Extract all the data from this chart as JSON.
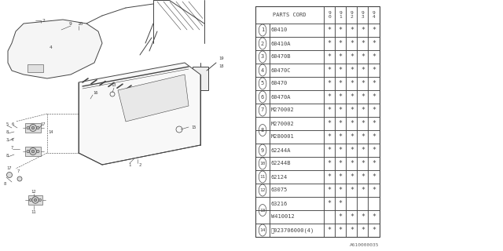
{
  "bg_color": "#ffffff",
  "line_color": "#444444",
  "table": {
    "col_header": "PARTS CORD",
    "year_cols": [
      "9\n0",
      "9\n1",
      "9\n2",
      "9\n3",
      "9\n4"
    ],
    "rows": [
      {
        "num": "1",
        "code": "60410",
        "stars": [
          1,
          1,
          1,
          1,
          1
        ],
        "circle": true,
        "span": 1
      },
      {
        "num": "2",
        "code": "60410A",
        "stars": [
          1,
          1,
          1,
          1,
          1
        ],
        "circle": true,
        "span": 1
      },
      {
        "num": "3",
        "code": "60470B",
        "stars": [
          1,
          1,
          1,
          1,
          1
        ],
        "circle": true,
        "span": 1
      },
      {
        "num": "4",
        "code": "60470C",
        "stars": [
          1,
          1,
          1,
          1,
          1
        ],
        "circle": true,
        "span": 1
      },
      {
        "num": "5",
        "code": "60470",
        "stars": [
          1,
          1,
          1,
          1,
          1
        ],
        "circle": true,
        "span": 1
      },
      {
        "num": "6",
        "code": "60470A",
        "stars": [
          1,
          1,
          1,
          1,
          1
        ],
        "circle": true,
        "span": 1
      },
      {
        "num": "7",
        "code": "M270002",
        "stars": [
          1,
          1,
          1,
          1,
          1
        ],
        "circle": true,
        "span": 1
      },
      {
        "num": "8",
        "code": "M270002",
        "stars": [
          1,
          1,
          1,
          1,
          1
        ],
        "circle": true,
        "span": 2
      },
      {
        "num": "",
        "code": "M280001",
        "stars": [
          1,
          1,
          1,
          1,
          1
        ],
        "circle": false,
        "span": 1
      },
      {
        "num": "9",
        "code": "62244A",
        "stars": [
          1,
          1,
          1,
          1,
          1
        ],
        "circle": true,
        "span": 1
      },
      {
        "num": "10",
        "code": "62244B",
        "stars": [
          1,
          1,
          1,
          1,
          1
        ],
        "circle": true,
        "span": 1
      },
      {
        "num": "11",
        "code": "62124",
        "stars": [
          1,
          1,
          1,
          1,
          1
        ],
        "circle": true,
        "span": 1
      },
      {
        "num": "12",
        "code": "63075",
        "stars": [
          1,
          1,
          1,
          1,
          1
        ],
        "circle": true,
        "span": 1
      },
      {
        "num": "13",
        "code": "63216",
        "stars": [
          1,
          1,
          0,
          0,
          0
        ],
        "circle": true,
        "span": 2
      },
      {
        "num": "",
        "code": "W410012",
        "stars": [
          0,
          1,
          1,
          1,
          1
        ],
        "circle": false,
        "span": 1
      },
      {
        "num": "14",
        "code": "Ⓝ023706000(4)",
        "stars": [
          1,
          1,
          1,
          1,
          1
        ],
        "circle": true,
        "span": 1
      }
    ]
  },
  "footnote": "A610000035"
}
